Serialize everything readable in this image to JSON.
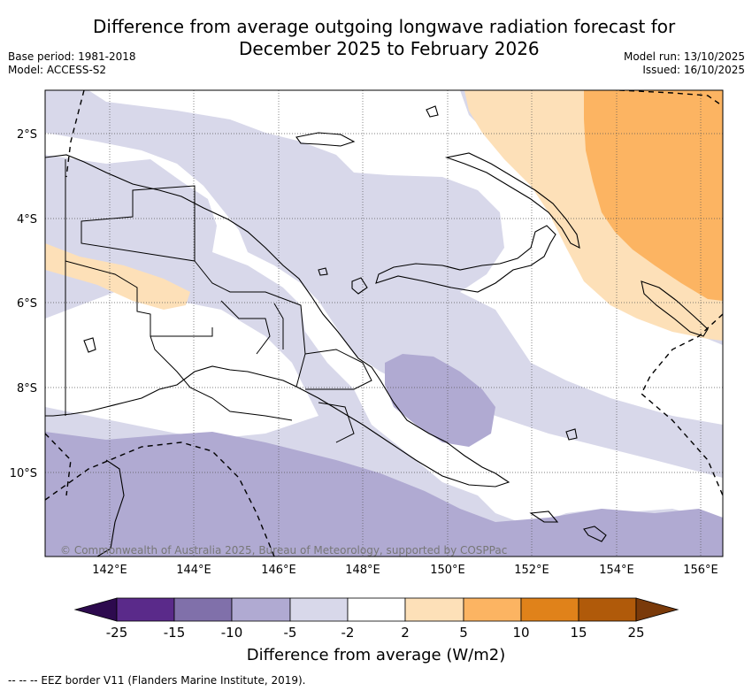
{
  "title": {
    "line1": "Difference from average outgoing longwave radiation forecast for",
    "line2": "December 2025 to February 2026"
  },
  "meta_left": {
    "base_period": "Base period: 1981-2018",
    "model": "Model: ACCESS-S2"
  },
  "meta_right": {
    "model_run": "Model run: 13/10/2025",
    "issued": "Issued: 16/10/2025"
  },
  "map": {
    "latitude_labels": [
      "2°S",
      "4°S",
      "6°S",
      "8°S",
      "10°S"
    ],
    "longitude_labels": [
      "142°E",
      "144°E",
      "146°E",
      "148°E",
      "150°E",
      "152°E",
      "154°E",
      "156°E"
    ],
    "copyright": "© Commonwealth of Australia 2025, Bureau of Meteorology, supported by COSPPac"
  },
  "colorbar": {
    "label": "Difference from average (W/m2)",
    "ticks": [
      "-25",
      "-15",
      "-10",
      "-5",
      "-2",
      "2",
      "5",
      "10",
      "15",
      "25"
    ],
    "colors": {
      "below_min": "#2d0a4e",
      "n25_n15": "#5a2a8a",
      "n15_n10": "#8070aa",
      "n10_n5": "#b0aad2",
      "n5_n2": "#d8d8ea",
      "n2_2": "#ffffff",
      "p2_p5": "#fde0b8",
      "p5_p10": "#fcb462",
      "p10_p15": "#e0821a",
      "p15_p25": "#b05a0a",
      "above_max": "#7a3a0a"
    }
  },
  "footer": {
    "legend": "--  --  -- EEZ border V11 (Flanders Marine Institute, 2019)."
  }
}
